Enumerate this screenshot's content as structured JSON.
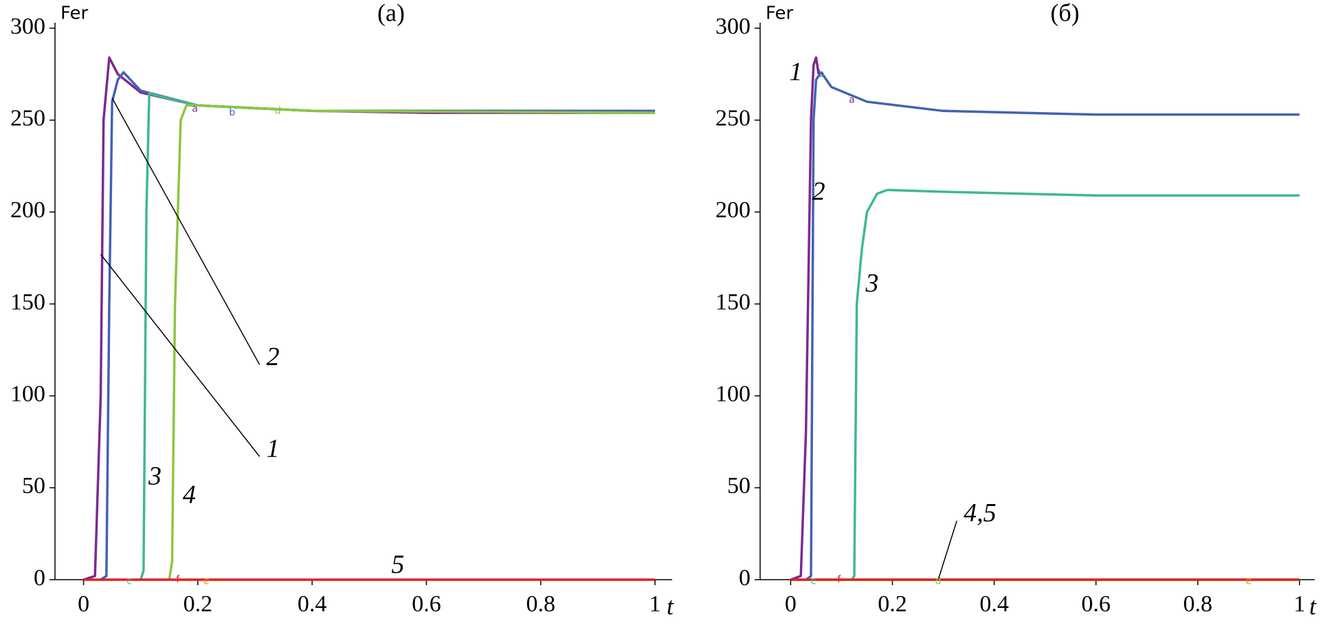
{
  "chart_data": [
    {
      "type": "line",
      "title": "(а)",
      "ylabel": "Fer",
      "xlabel": "t",
      "xlim": [
        -0.05,
        1.03
      ],
      "ylim": [
        0,
        300
      ],
      "xticks": [
        0,
        0.2,
        0.4,
        0.6,
        0.8,
        1
      ],
      "yticks": [
        0,
        50,
        100,
        150,
        200,
        250,
        300
      ],
      "series": [
        {
          "color": "#7b2a8e",
          "x": [
            0,
            0.02,
            0.03,
            0.035,
            0.045,
            0.06,
            0.1,
            0.2,
            0.4,
            0.6,
            1
          ],
          "values": [
            0,
            2,
            100,
            250,
            284,
            275,
            265,
            258,
            255,
            254,
            254
          ]
        },
        {
          "color": "#4262b4",
          "x": [
            0.03,
            0.04,
            0.045,
            0.05,
            0.06,
            0.07,
            0.1,
            0.2,
            0.4,
            1
          ],
          "values": [
            0,
            2,
            150,
            260,
            272,
            276,
            266,
            258,
            255,
            255
          ]
        },
        {
          "color": "#3fb893",
          "x": [
            0.1,
            0.105,
            0.11,
            0.115,
            0.12,
            0.2,
            0.4,
            1
          ],
          "values": [
            0,
            5,
            200,
            265,
            264,
            258,
            255,
            254
          ]
        },
        {
          "color": "#8cc63f",
          "x": [
            0.15,
            0.155,
            0.16,
            0.17,
            0.18,
            0.2,
            0.4,
            1
          ],
          "values": [
            0,
            10,
            150,
            250,
            258,
            258,
            255,
            254
          ]
        },
        {
          "color": "#e0201e",
          "x": [
            0,
            1
          ],
          "values": [
            0,
            0
          ]
        }
      ],
      "annotations": [
        {
          "text": "1",
          "x": 0.32,
          "y": 70,
          "arrow_to": [
            0.03,
            177
          ]
        },
        {
          "text": "2",
          "x": 0.32,
          "y": 120,
          "arrow_to": [
            0.05,
            262
          ]
        },
        {
          "text": "3",
          "x": 0.125,
          "y": 55
        },
        {
          "text": "4",
          "x": 0.185,
          "y": 45
        },
        {
          "text": "5",
          "x": 0.55,
          "y": 7
        },
        {
          "text": "a",
          "x": 0.195,
          "y": 256,
          "color": "#7b2a8e"
        },
        {
          "text": "b",
          "x": 0.26,
          "y": 254,
          "color": "#4262b4"
        },
        {
          "text": "d",
          "x": 0.34,
          "y": 255,
          "color": "#8cc63f"
        },
        {
          "text": "c",
          "x": 0.08,
          "y": -1,
          "color": "#3fb893"
        },
        {
          "text": "f",
          "x": 0.165,
          "y": 0,
          "color": "#e0201e"
        },
        {
          "text": "e",
          "x": 0.215,
          "y": -1,
          "color": "#f08c1e"
        }
      ]
    },
    {
      "type": "line",
      "title": "(б)",
      "ylabel": "Fer",
      "xlabel": "t",
      "xlim": [
        -0.06,
        1.03
      ],
      "ylim": [
        0,
        300
      ],
      "xticks": [
        0,
        0.2,
        0.4,
        0.6,
        0.8,
        1
      ],
      "yticks": [
        0,
        50,
        100,
        150,
        200,
        250,
        300
      ],
      "series": [
        {
          "color": "#7b2a8e",
          "x": [
            0,
            0.02,
            0.03,
            0.04,
            0.045,
            0.05,
            0.055
          ],
          "values": [
            0,
            2,
            80,
            250,
            280,
            284,
            275
          ]
        },
        {
          "color": "#4262b4",
          "x": [
            0.03,
            0.04,
            0.042,
            0.045,
            0.05,
            0.06,
            0.08,
            0.15,
            0.3,
            0.6,
            1
          ],
          "values": [
            0,
            2,
            100,
            250,
            272,
            276,
            268,
            260,
            255,
            253,
            253
          ]
        },
        {
          "color": "#3fb893",
          "x": [
            0.12,
            0.125,
            0.13,
            0.14,
            0.15,
            0.17,
            0.19,
            0.3,
            0.6,
            1
          ],
          "values": [
            0,
            2,
            150,
            180,
            200,
            210,
            212,
            211,
            209,
            209
          ]
        },
        {
          "color": "#8cc63f",
          "x": [
            0,
            1
          ],
          "values": [
            0,
            0
          ]
        },
        {
          "color": "#e0201e",
          "x": [
            0,
            1
          ],
          "values": [
            0,
            0
          ]
        }
      ],
      "annotations": [
        {
          "text": "1",
          "x": 0.01,
          "y": 275
        },
        {
          "text": "2",
          "x": 0.055,
          "y": 210
        },
        {
          "text": "3",
          "x": 0.16,
          "y": 160
        },
        {
          "text": "4,5",
          "x": 0.34,
          "y": 35,
          "arrow_to": [
            0.29,
            0
          ]
        },
        {
          "text": "b",
          "x": 0.06,
          "y": 275,
          "color": "#4262b4"
        },
        {
          "text": "a",
          "x": 0.12,
          "y": 261,
          "color": "#7b2a8e"
        },
        {
          "text": "c",
          "x": 0.045,
          "y": -1,
          "color": "#3fb893"
        },
        {
          "text": "f",
          "x": 0.095,
          "y": 0,
          "color": "#e0201e"
        },
        {
          "text": "d",
          "x": 0.29,
          "y": -1,
          "color": "#8cc63f"
        },
        {
          "text": "e",
          "x": 0.9,
          "y": -1,
          "color": "#f08c1e"
        }
      ]
    }
  ]
}
